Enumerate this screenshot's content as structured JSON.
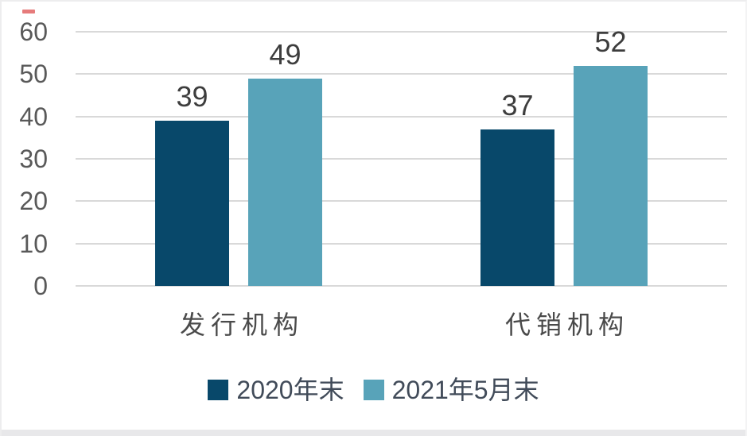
{
  "page": {
    "background": "#ffffff"
  },
  "decorations": {
    "red_dash_color": "#e05a5a",
    "bottom_strip_color": "#e8e8ea"
  },
  "chart_data": {
    "type": "bar",
    "title": "",
    "xlabel": "",
    "ylabel": "",
    "categories": [
      "发行机构",
      "代销机构"
    ],
    "series": [
      {
        "name": "2020年末",
        "color": "#08486a",
        "values": [
          39,
          37
        ]
      },
      {
        "name": "2021年5月末",
        "color": "#58a3b9",
        "values": [
          49,
          52
        ]
      }
    ],
    "value_labels": [
      [
        "39",
        "37"
      ],
      [
        "49",
        "52"
      ]
    ],
    "yticks": [
      "0",
      "10",
      "20",
      "30",
      "40",
      "50",
      "60"
    ],
    "ylim": [
      0,
      60
    ],
    "grid": true,
    "legend_position": "bottom",
    "gridline_color": "#d9d9d9",
    "axis_text_color": "#595959",
    "value_label_color": "#3d3d3d",
    "category_label_color": "#4a4a4a",
    "legend_text_color": "#414b59"
  }
}
